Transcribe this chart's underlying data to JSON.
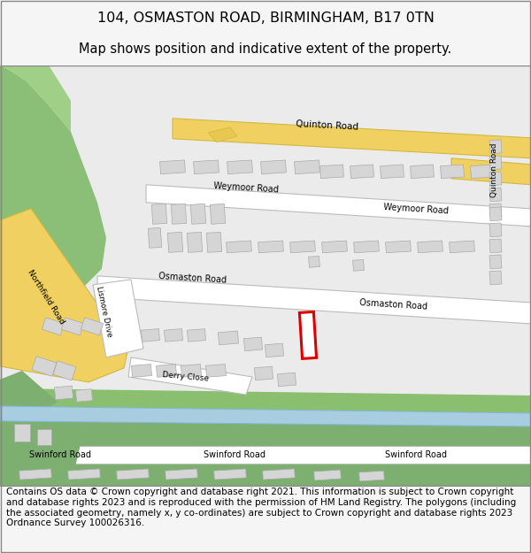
{
  "title_line1": "104, OSMASTON ROAD, BIRMINGHAM, B17 0TN",
  "title_line2": "Map shows position and indicative extent of the property.",
  "footer_text": "Contains OS data © Crown copyright and database right 2021. This information is subject to Crown copyright and database rights 2023 and is reproduced with the permission of HM Land Registry. The polygons (including the associated geometry, namely x, y co-ordinates) are subject to Crown copyright and database rights 2023 Ordnance Survey 100026316.",
  "bg_color": "#f5f5f5",
  "map_bg": "#ebebeb",
  "title_fontsize": 11.5,
  "subtitle_fontsize": 10.5,
  "footer_fontsize": 7.5,
  "fig_width": 6.0,
  "fig_height": 6.25,
  "border_color": "#999999",
  "road_yellow": "#f0d060",
  "road_white": "#ffffff",
  "green_dark": "#7db070",
  "green_med": "#90c078",
  "water_blue": "#a8cce0",
  "building_gray": "#d5d5d5",
  "building_outline": "#aaaaaa",
  "road_outline": "#bbbbbb",
  "highlight_red": "#dd0000",
  "plot_fill": "#ffffff"
}
